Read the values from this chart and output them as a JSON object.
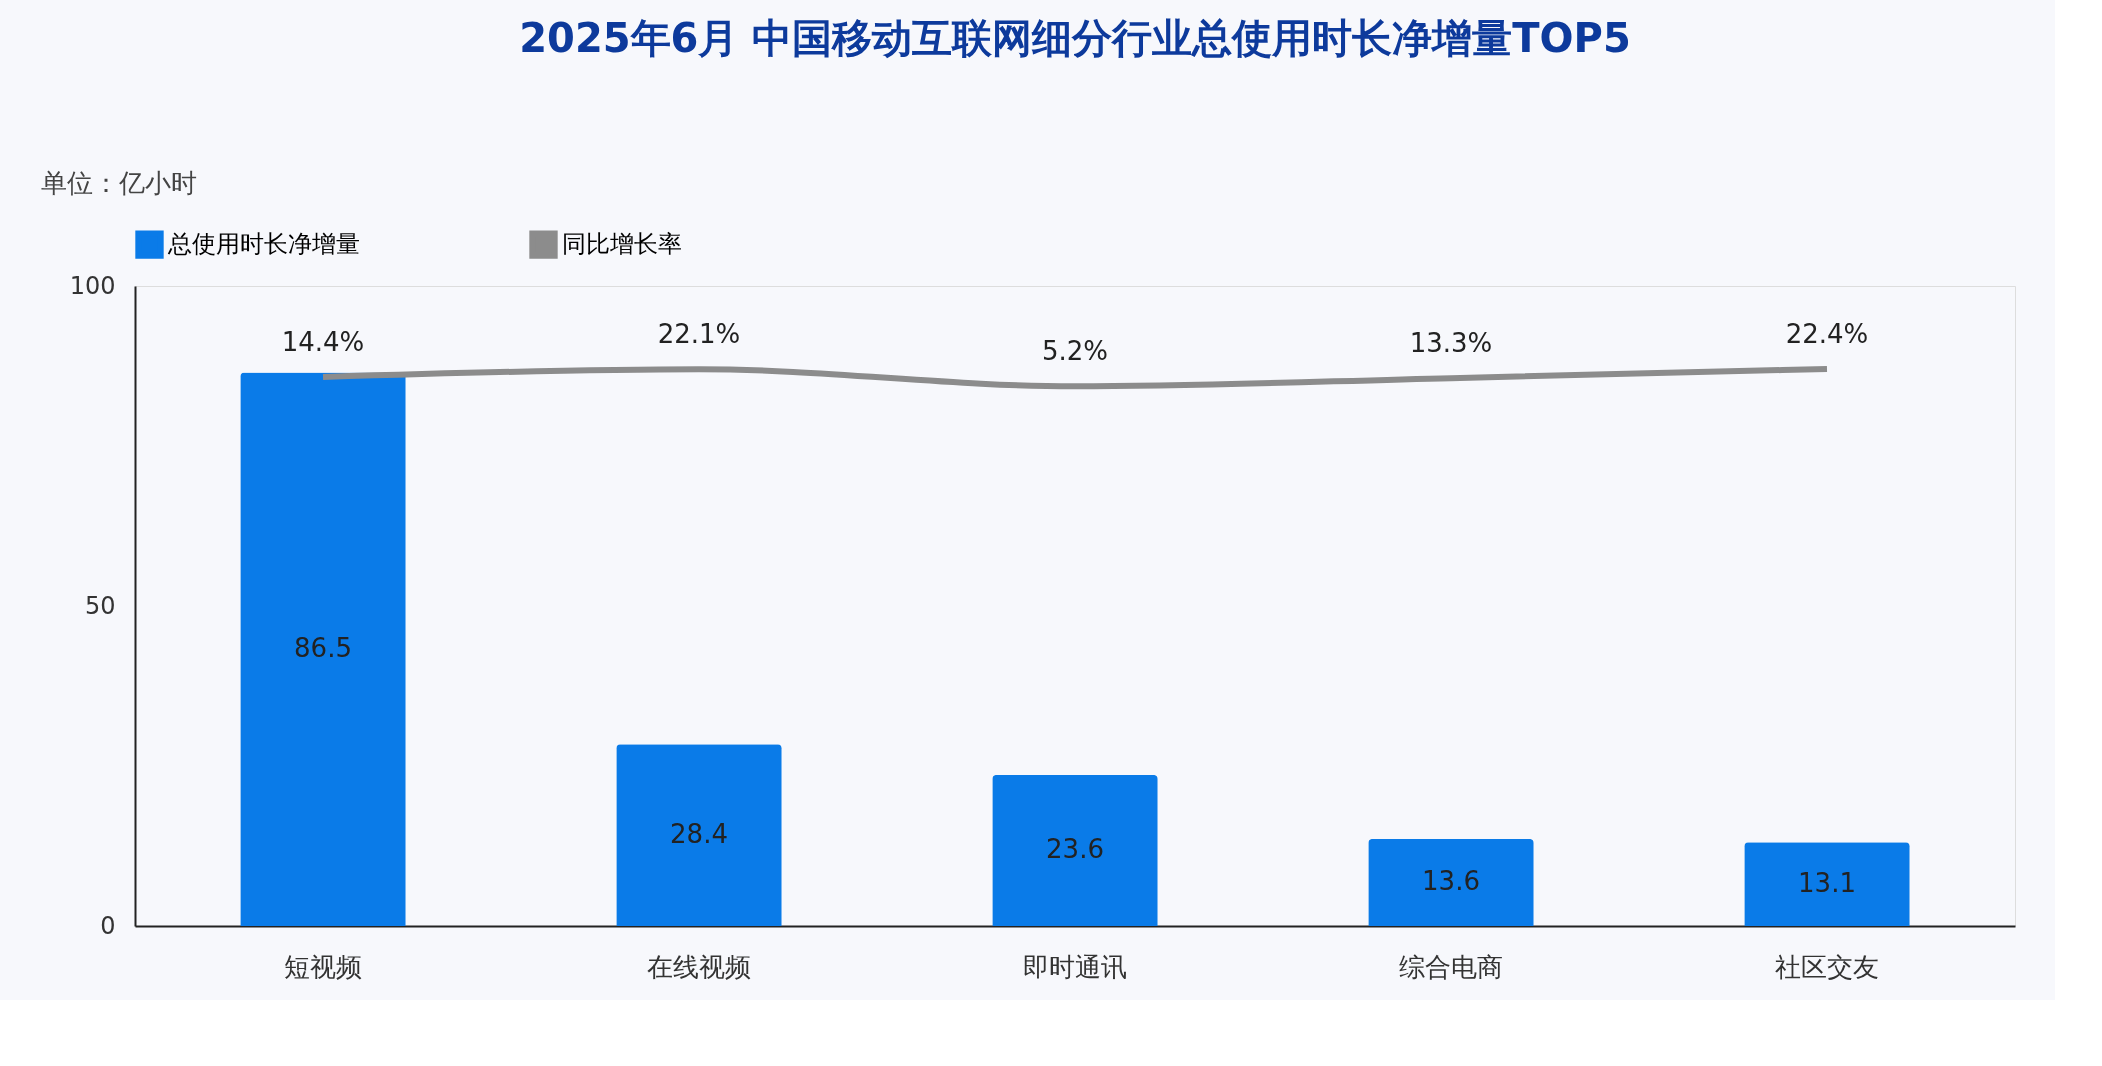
{
  "chart_data": {
    "type": "bar",
    "title": "2025年6月 中国移动互联网细分行业总使用时长净增量TOP5",
    "ylabel": "单位：亿小时",
    "categories": [
      "短视频",
      "在线视频",
      "即时通讯",
      "综合电商",
      "社区交友"
    ],
    "series": [
      {
        "name": "总使用时长净增量",
        "color": "#0a7be8",
        "values": [
          86.5,
          28.4,
          23.6,
          13.6,
          13.1
        ],
        "value_labels": [
          "86.5",
          "28.4",
          "23.6",
          "13.6",
          "13.1"
        ]
      },
      {
        "name": "同比增长率",
        "type": "line",
        "axis": "y2",
        "color": "#8c8c8c",
        "values": [
          14.4,
          22.1,
          5.2,
          13.3,
          22.4
        ],
        "value_labels": [
          "14.4%",
          "22.1%",
          "5.2%",
          "13.3%",
          "22.4%"
        ]
      }
    ],
    "ylim": [
      0,
      100
    ],
    "yticks": [
      0,
      50,
      100
    ],
    "y2lim": [
      -526,
      104
    ],
    "grid": false,
    "legend": "top",
    "tick_labels": "xy"
  }
}
